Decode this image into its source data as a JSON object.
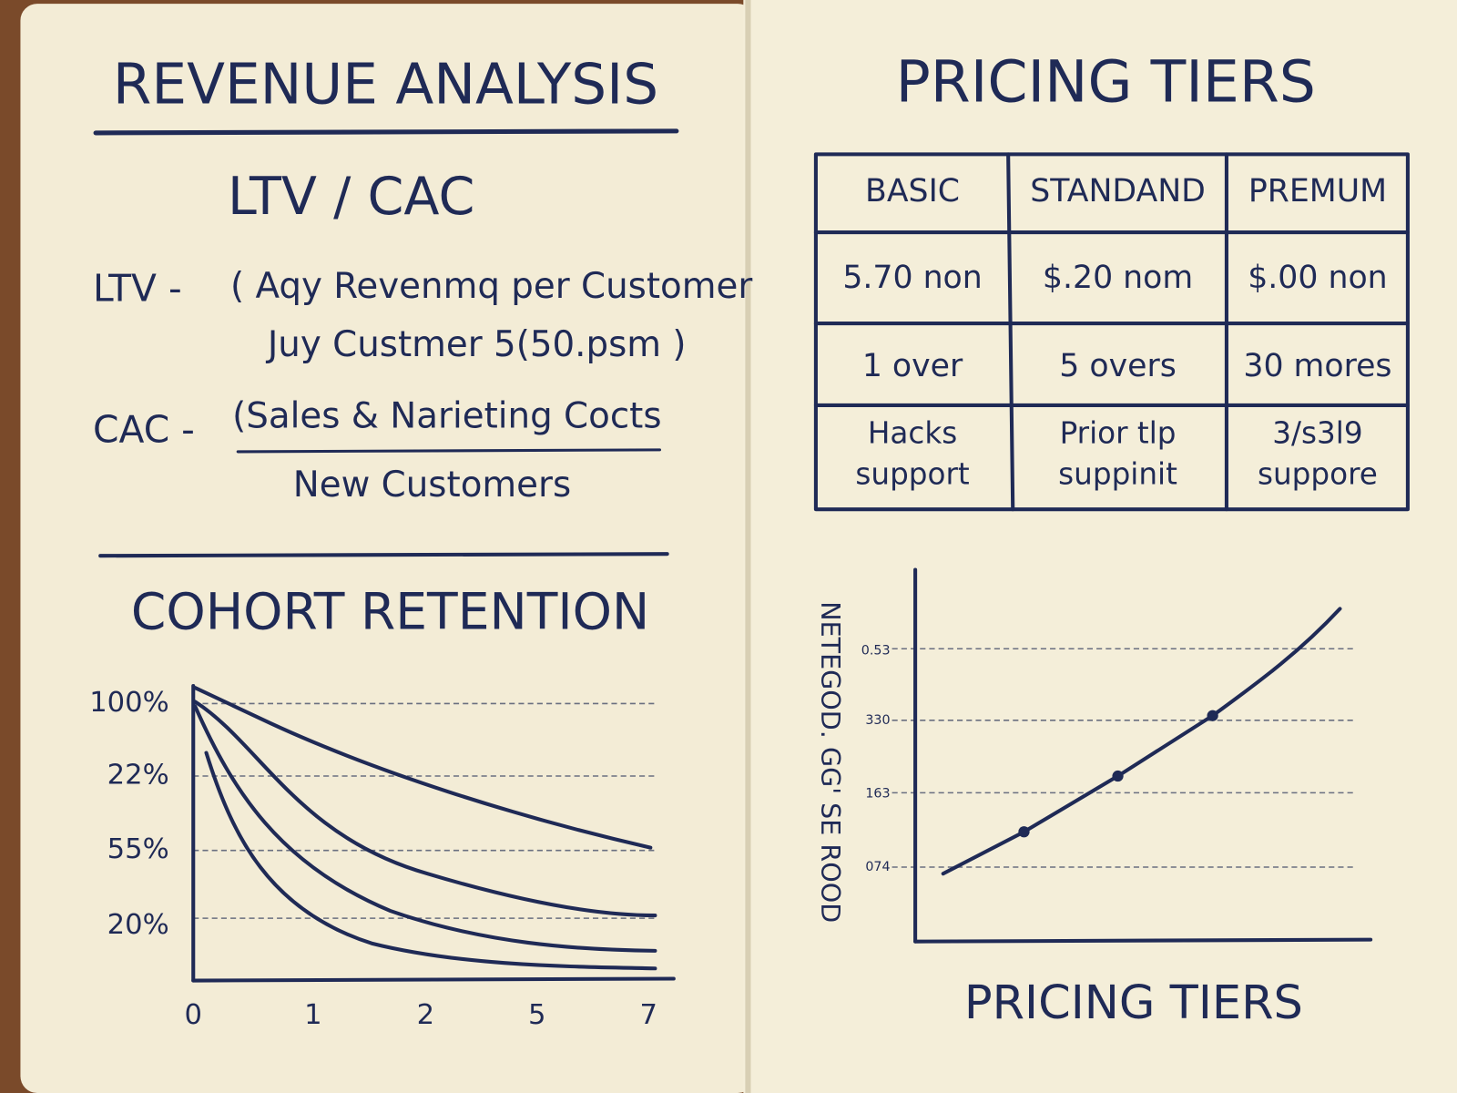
{
  "left_page": {
    "title": "REVENUE ANALYSIS",
    "formula_heading": "LTV / CAC",
    "ltv_label": "LTV -",
    "ltv_line1": "( Aqy Revenmq per Customer",
    "ltv_line2": "Juy Custmer 5(50.psm )",
    "cac_label": "CAC -",
    "cac_numerator": "(Sales & Narieting Cocts",
    "cac_denominator": "New Customers",
    "cohort_title": "COHORT RETENTION",
    "y_tick_labels": [
      "100%",
      "22%",
      "55%",
      "20%"
    ],
    "x_tick_labels": [
      "0",
      "1",
      "2",
      "5",
      "7"
    ]
  },
  "right_page": {
    "title": "PRICING TIERS",
    "table": {
      "header": [
        "BASIC",
        "STANDAND",
        "PREMUM"
      ],
      "rows": [
        [
          "5.70 non",
          "$.20 nom",
          "$.00 non"
        ],
        [
          "1 over",
          "5 overs",
          "30 mores"
        ],
        [
          [
            "Hacks",
            "support"
          ],
          [
            "Prior tlp",
            "suppinit"
          ],
          [
            "3/s3l9",
            "suppore"
          ]
        ]
      ]
    },
    "chart_y_label": "NETEGOD. GG' SE ROOD",
    "y_tick_labels": [
      "0.53",
      "330",
      "163",
      "074"
    ],
    "x_axis_label": "PRICING TIERS"
  }
}
